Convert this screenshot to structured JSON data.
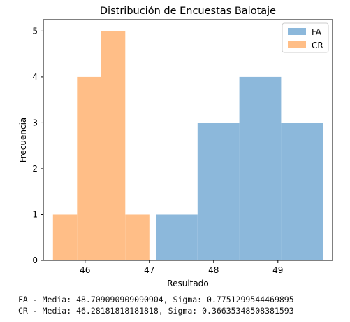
{
  "chart_data": {
    "type": "histogram",
    "title": "Distribución de Encuestas Balotaje",
    "xlabel": "Resultado",
    "ylabel": "Frecuencia",
    "xlim": [
      45.35,
      49.85
    ],
    "ylim": [
      0,
      5.25
    ],
    "x_ticks": [
      46,
      47,
      48,
      49
    ],
    "y_ticks": [
      0,
      1,
      2,
      3,
      4,
      5
    ],
    "legend_position": "top-right",
    "series": [
      {
        "name": "FA",
        "color": "#8cb8db",
        "bins": [
          {
            "start": 47.1,
            "end": 47.75,
            "count": 1
          },
          {
            "start": 47.75,
            "end": 48.4,
            "count": 3
          },
          {
            "start": 48.4,
            "end": 49.05,
            "count": 4
          },
          {
            "start": 49.05,
            "end": 49.7,
            "count": 3
          }
        ]
      },
      {
        "name": "CR",
        "color": "#ffbe87",
        "bins": [
          {
            "start": 45.5,
            "end": 45.875,
            "count": 1
          },
          {
            "start": 45.875,
            "end": 46.25,
            "count": 4
          },
          {
            "start": 46.25,
            "end": 46.625,
            "count": 5
          },
          {
            "start": 46.625,
            "end": 47.0,
            "count": 1
          }
        ]
      }
    ]
  },
  "stats": {
    "fa_line": "FA - Media: 48.709090909090904, Sigma: 0.7751299544469895",
    "cr_line": "CR - Media: 46.28181818181818, Sigma: 0.36635348508381593"
  }
}
